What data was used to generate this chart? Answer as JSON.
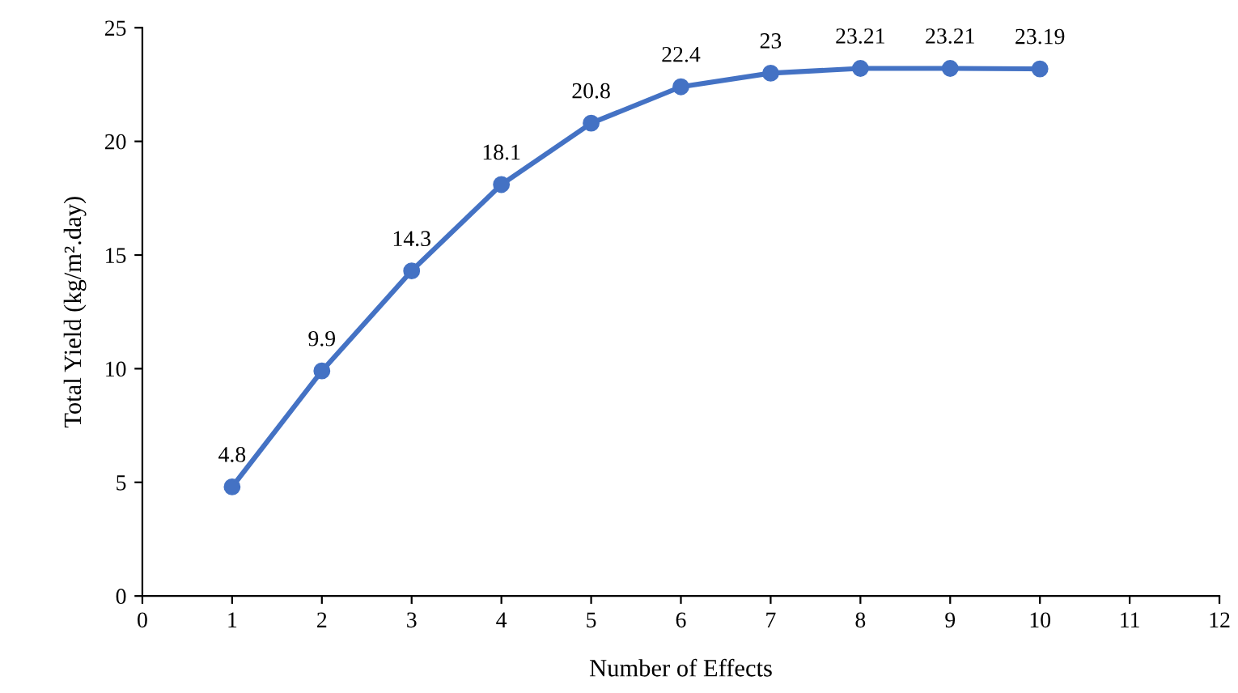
{
  "chart_data": {
    "type": "line",
    "xlabel": "Number of Effects",
    "ylabel": "Total Yield (kg/m².day)",
    "x": [
      1,
      2,
      3,
      4,
      5,
      6,
      7,
      8,
      9,
      10
    ],
    "series": [
      {
        "color": "#4472c4",
        "values": [
          4.8,
          9.9,
          14.3,
          18.1,
          20.8,
          22.4,
          23,
          23.21,
          23.21,
          23.19
        ]
      }
    ],
    "xlim": [
      0,
      12
    ],
    "xticks": [
      0,
      1,
      2,
      3,
      4,
      5,
      6,
      7,
      8,
      9,
      10,
      11,
      12
    ],
    "ylim": [
      0,
      25
    ],
    "yticks": [
      0,
      5,
      10,
      15,
      20,
      25
    ],
    "marker": "circle",
    "line_style": "solid",
    "data_labels": true,
    "grid": false,
    "legend": false
  }
}
